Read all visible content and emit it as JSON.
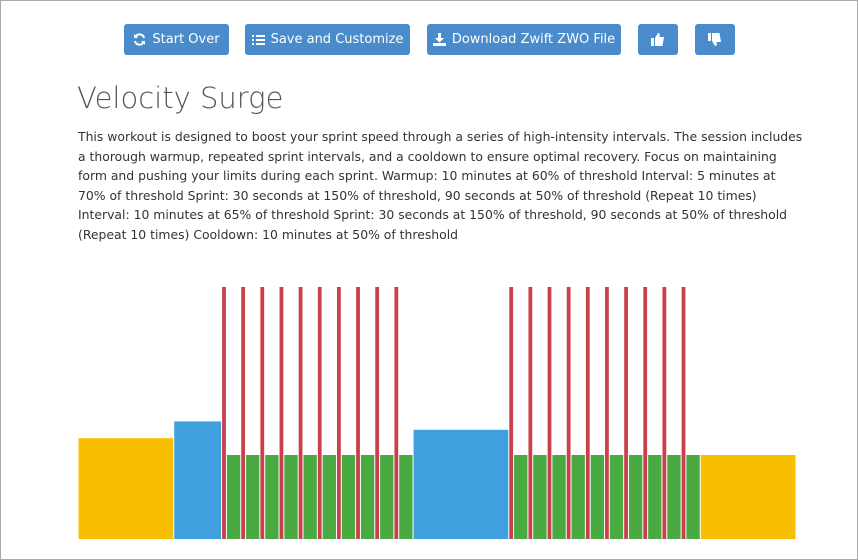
{
  "buttons": [
    "Start Over",
    "Save and Customize",
    "Download Zwift ZWO File"
  ],
  "header": {
    "title": "Velocity Surge"
  },
  "description": "This workout is designed to boost your sprint speed through a series of high-intensity intervals. The session includes a thorough warmup, repeated sprint intervals, and a cooldown to ensure optimal recovery. Focus on maintaining form and pushing your limits during each sprint. Warmup: 10 minutes at 60% of threshold Interval: 5 minutes at 70% of threshold Sprint: 30 seconds at 150% of threshold, 90 seconds at 50% of threshold (Repeat 10 times) Interval: 10 minutes at 65% of threshold Sprint: 30 seconds at 150% of threshold, 90 seconds at 50% of threshold (Repeat 10 times) Cooldown: 10 minutes at 50% of threshold",
  "chart_data": {
    "type": "workout",
    "durations": [
      10,
      5,
      0.5,
      1.5,
      0.5,
      1.5,
      0.5,
      1.5,
      0.5,
      1.5,
      0.5,
      1.5,
      0.5,
      1.5,
      0.5,
      1.5,
      0.5,
      1.5,
      0.5,
      1.5,
      0.5,
      1.5,
      10,
      0.5,
      1.5,
      0.5,
      1.5,
      0.5,
      1.5,
      0.5,
      1.5,
      0.5,
      1.5,
      0.5,
      1.5,
      0.5,
      1.5,
      0.5,
      1.5,
      0.5,
      1.5,
      0.5,
      1.5,
      10
    ],
    "values": [
      60,
      70,
      150,
      50,
      150,
      50,
      150,
      50,
      150,
      50,
      150,
      50,
      150,
      50,
      150,
      50,
      150,
      50,
      150,
      50,
      150,
      50,
      65,
      150,
      50,
      150,
      50,
      150,
      50,
      150,
      50,
      150,
      50,
      150,
      50,
      150,
      50,
      150,
      50,
      150,
      50,
      150,
      50,
      50
    ],
    "colors": [
      "#f8bf00",
      "#3f9fdf",
      "#c8404a",
      "#4aaa42",
      "#c8404a",
      "#4aaa42",
      "#c8404a",
      "#4aaa42",
      "#c8404a",
      "#4aaa42",
      "#c8404a",
      "#4aaa42",
      "#c8404a",
      "#4aaa42",
      "#c8404a",
      "#4aaa42",
      "#c8404a",
      "#4aaa42",
      "#c8404a",
      "#4aaa42",
      "#c8404a",
      "#4aaa42",
      "#3f9fdf",
      "#c8404a",
      "#4aaa42",
      "#c8404a",
      "#4aaa42",
      "#c8404a",
      "#4aaa42",
      "#c8404a",
      "#4aaa42",
      "#c8404a",
      "#4aaa42",
      "#c8404a",
      "#4aaa42",
      "#c8404a",
      "#4aaa42",
      "#c8404a",
      "#4aaa42",
      "#c8404a",
      "#4aaa42",
      "#c8404a",
      "#4aaa42",
      "#f8bf00"
    ]
  }
}
